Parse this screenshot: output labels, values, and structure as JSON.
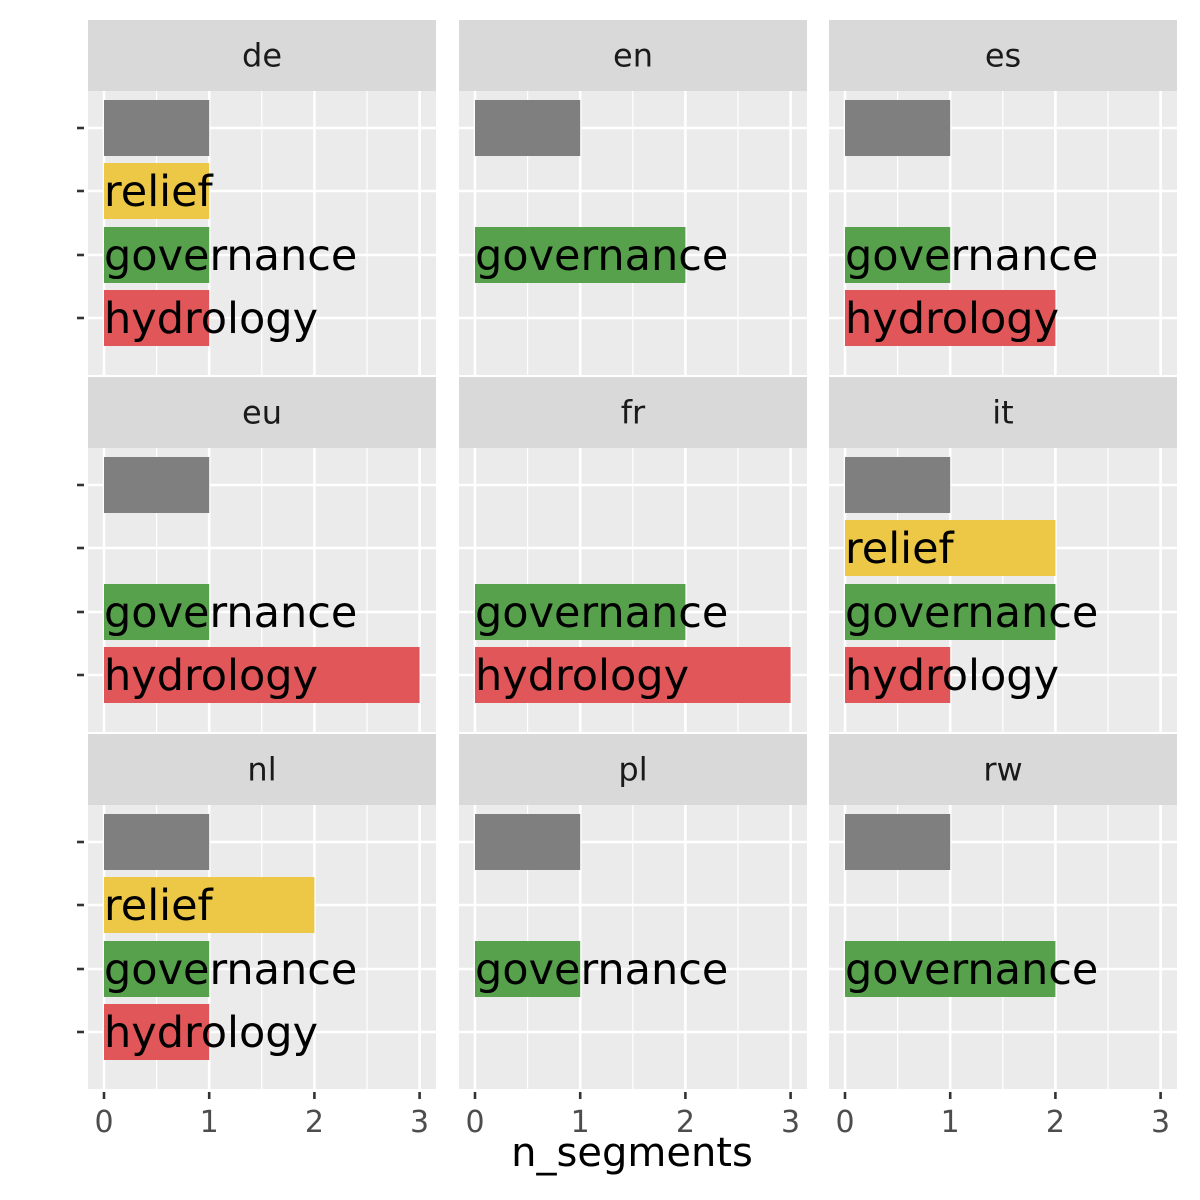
{
  "chart_data": {
    "type": "bar",
    "orientation": "horizontal",
    "facet_variable": "language",
    "xlabel": "n_segments",
    "ylabel": "",
    "xlim": [
      0,
      3
    ],
    "x_ticks": [
      0,
      1,
      2,
      3
    ],
    "categories": [
      "",
      "relief",
      "governance",
      "hydrology"
    ],
    "category_colors": {
      "": "#7f7f7f",
      "relief": "#ecc846",
      "governance": "#57a14d",
      "hydrology": "#e15759"
    },
    "panel_background": "#ebebeb",
    "strip_background": "#d9d9d9",
    "grid": true,
    "legend": "none",
    "facets": [
      {
        "name": "de",
        "values": [
          1,
          1,
          1,
          1
        ]
      },
      {
        "name": "en",
        "values": [
          1,
          0,
          2,
          0
        ]
      },
      {
        "name": "es",
        "values": [
          1,
          0,
          1,
          2
        ]
      },
      {
        "name": "eu",
        "values": [
          1,
          0,
          1,
          3
        ]
      },
      {
        "name": "fr",
        "values": [
          0,
          0,
          2,
          3
        ]
      },
      {
        "name": "it",
        "values": [
          1,
          2,
          2,
          1
        ]
      },
      {
        "name": "nl",
        "values": [
          1,
          2,
          1,
          1
        ]
      },
      {
        "name": "pl",
        "values": [
          1,
          0,
          1,
          0
        ]
      },
      {
        "name": "rw",
        "values": [
          1,
          0,
          2,
          0
        ]
      }
    ]
  }
}
